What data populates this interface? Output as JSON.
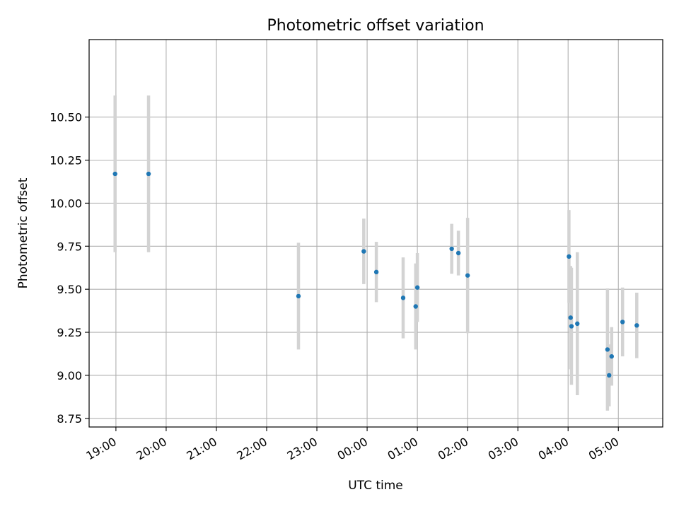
{
  "chart_data": {
    "type": "scatter",
    "title": "Photometric offset variation",
    "xlabel": "UTC time",
    "ylabel": "Photometric offset",
    "grid": true,
    "x_ticks": [
      "19:00",
      "20:00",
      "21:00",
      "22:00",
      "23:00",
      "00:00",
      "01:00",
      "02:00",
      "03:00",
      "04:00",
      "05:00"
    ],
    "y_ticks": [
      "8.75",
      "9.00",
      "9.25",
      "9.50",
      "9.75",
      "10.00",
      "10.25",
      "10.50"
    ],
    "xlim": [
      "18:28",
      "05:53"
    ],
    "ylim": [
      8.7,
      10.95
    ],
    "colors": {
      "point": "#1f77b4",
      "errorbar": "#d3d3d3",
      "grid": "#b0b0b0",
      "axes": "#000000"
    },
    "points": [
      {
        "time": "18:59",
        "y": 10.17,
        "err": 0.455
      },
      {
        "time": "19:39",
        "y": 10.17,
        "err": 0.455
      },
      {
        "time": "22:38",
        "y": 9.46,
        "err": 0.31
      },
      {
        "time": "23:56",
        "y": 9.72,
        "err": 0.19
      },
      {
        "time": "00:11",
        "y": 9.6,
        "err": 0.175
      },
      {
        "time": "00:43",
        "y": 9.45,
        "err": 0.235
      },
      {
        "time": "00:58",
        "y": 9.4,
        "err": 0.25
      },
      {
        "time": "01:00",
        "y": 9.51,
        "err": 0.2
      },
      {
        "time": "01:41",
        "y": 9.735,
        "err": 0.145
      },
      {
        "time": "01:49",
        "y": 9.71,
        "err": 0.13
      },
      {
        "time": "02:00",
        "y": 9.58,
        "err": 0.335
      },
      {
        "time": "04:01",
        "y": 9.69,
        "err": 0.27
      },
      {
        "time": "04:03",
        "y": 9.335,
        "err": 0.3
      },
      {
        "time": "04:04",
        "y": 9.285,
        "err": 0.34
      },
      {
        "time": "04:11",
        "y": 9.3,
        "err": 0.415
      },
      {
        "time": "04:47",
        "y": 9.15,
        "err": 0.355
      },
      {
        "time": "04:49",
        "y": 9.0,
        "err": 0.18
      },
      {
        "time": "04:52",
        "y": 9.11,
        "err": 0.17
      },
      {
        "time": "05:05",
        "y": 9.31,
        "err": 0.2
      },
      {
        "time": "05:22",
        "y": 9.29,
        "err": 0.19
      }
    ]
  }
}
